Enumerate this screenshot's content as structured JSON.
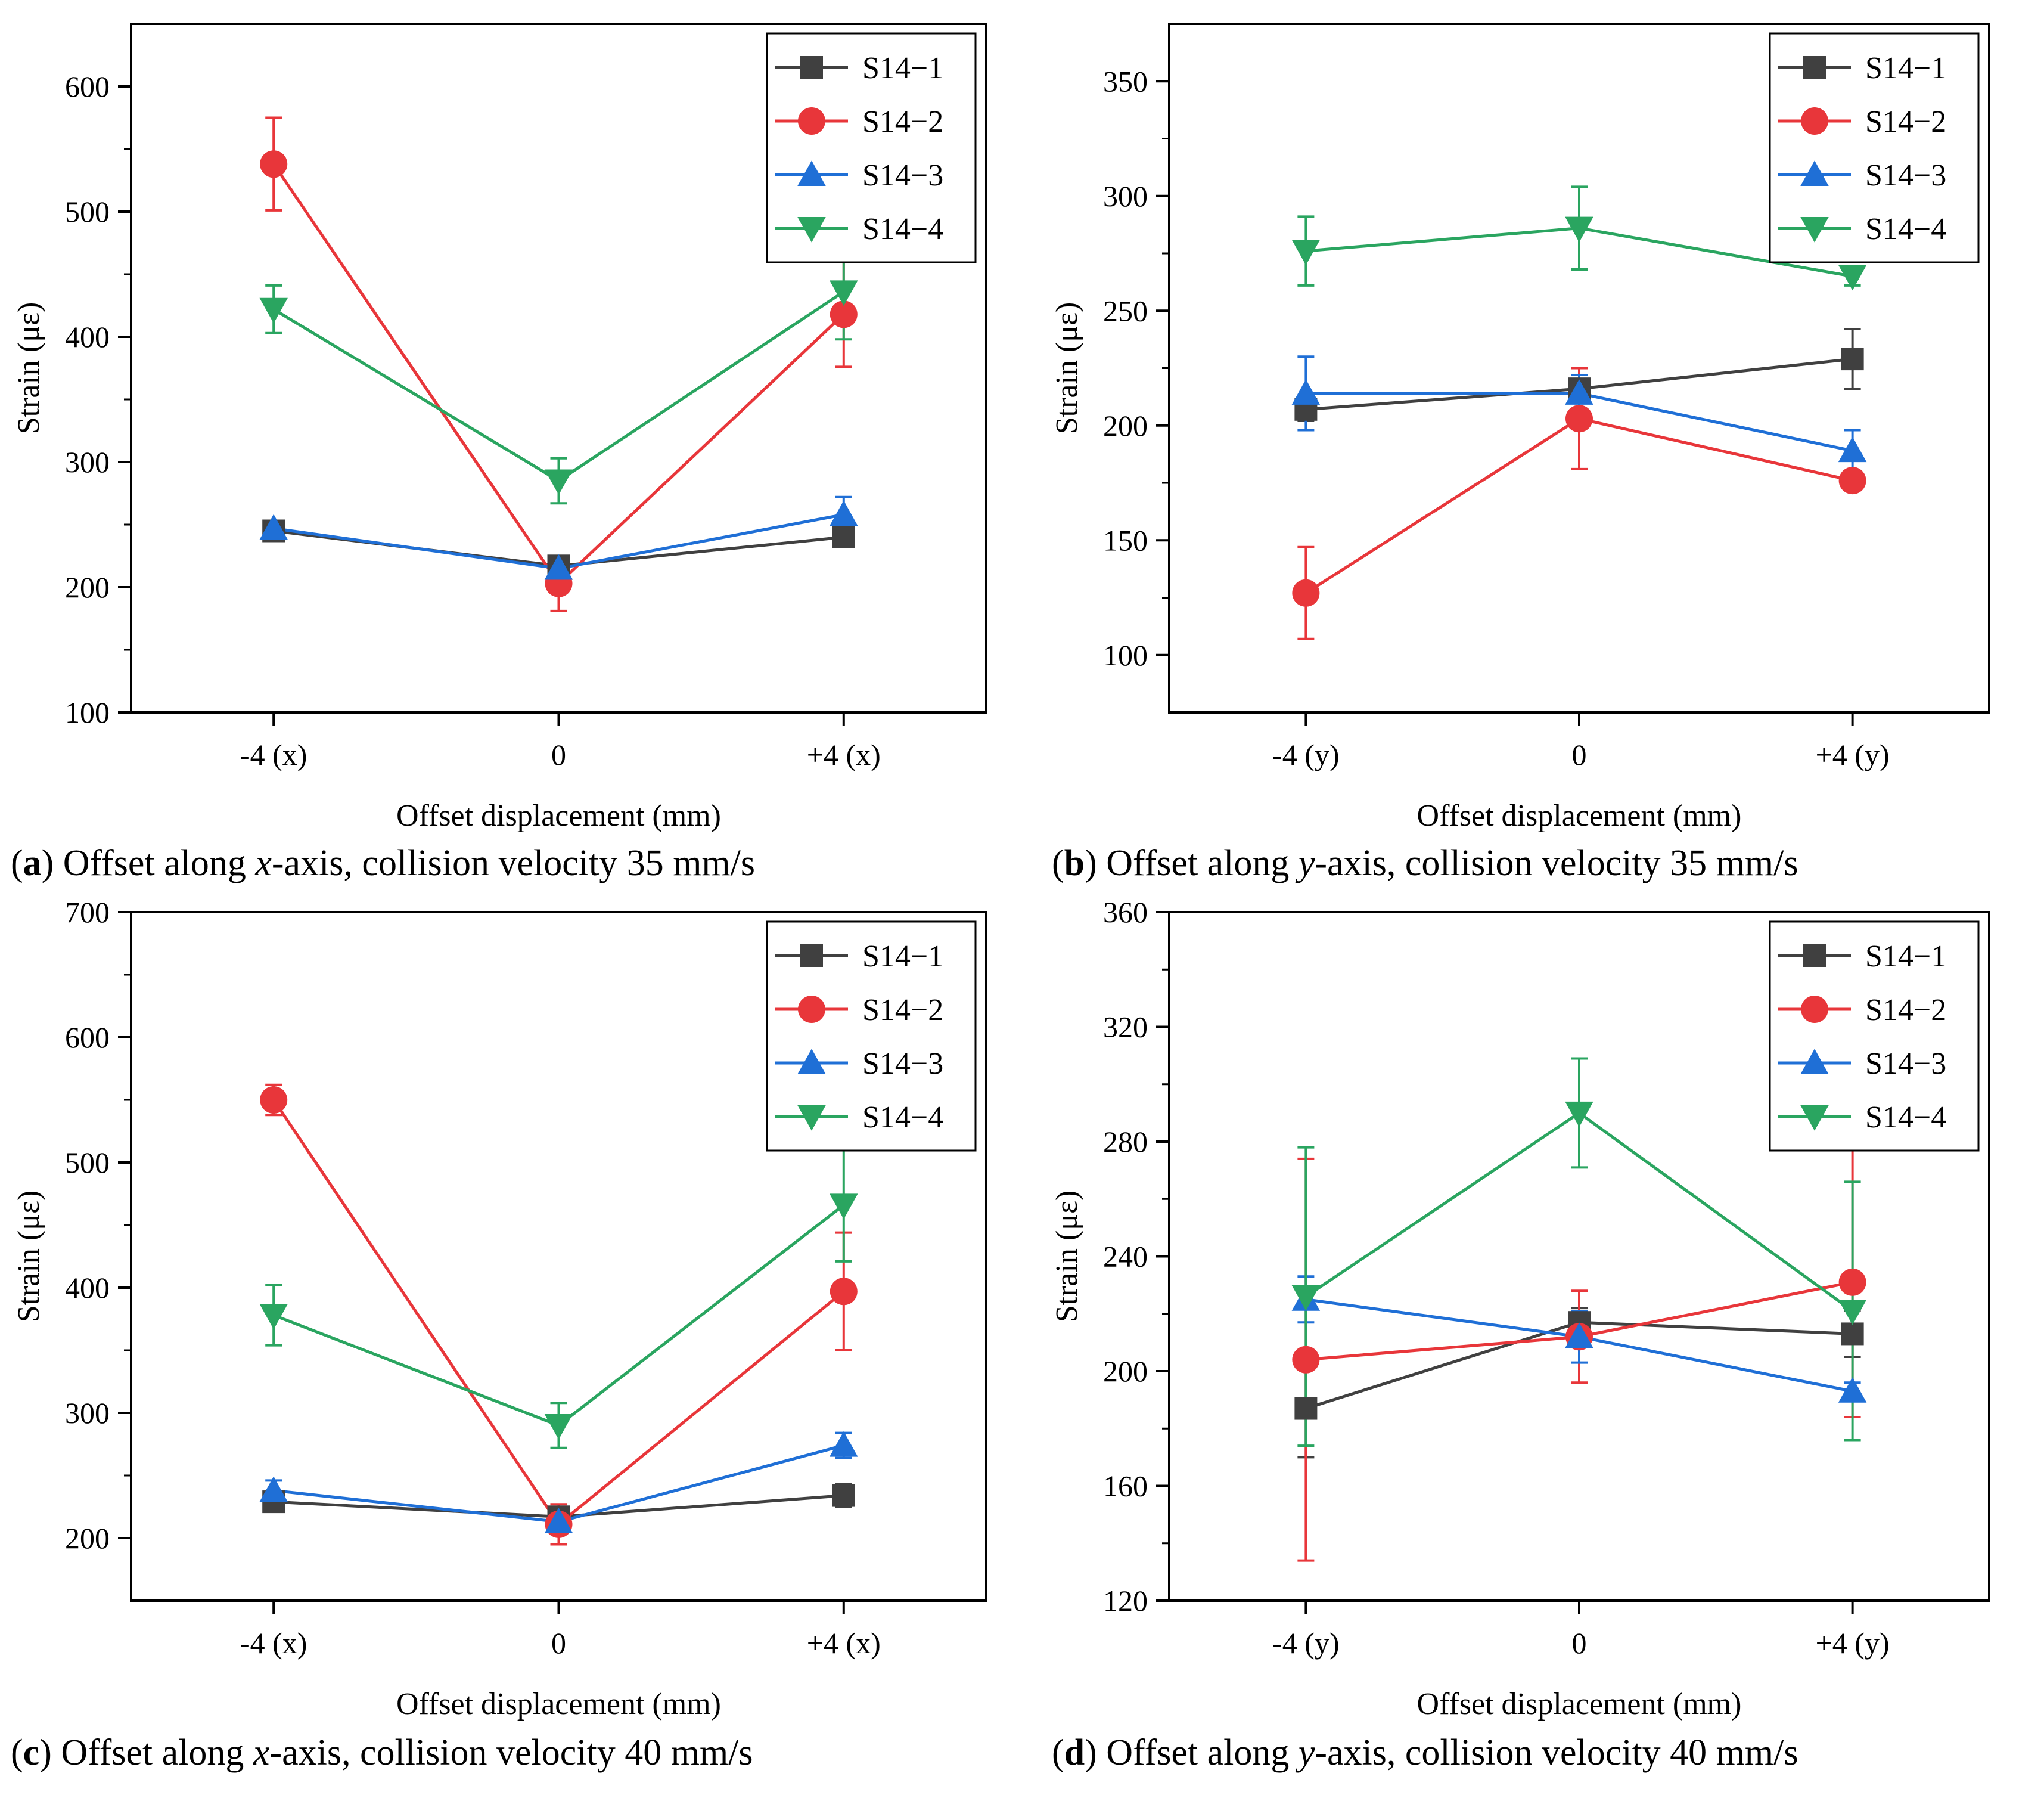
{
  "chart_data": [
    {
      "type": "line",
      "caption_letter": "a",
      "caption_pre": "Offset along ",
      "caption_axis": "x",
      "caption_post": "-axis, collision velocity 35 mm/s",
      "xlabel": "Offset displacement (mm)",
      "ylabel": "Strain (με)",
      "categories": [
        "-4 (x)",
        "0",
        "+4 (x)"
      ],
      "ylim": [
        100,
        650
      ],
      "yticks": [
        100,
        200,
        300,
        400,
        500,
        600
      ],
      "legend_position": "top-right",
      "series": [
        {
          "name": "S14−1",
          "color": "#404040",
          "marker": "square",
          "values": [
            245,
            217,
            240
          ],
          "errors": [
            8,
            8,
            6
          ]
        },
        {
          "name": "S14−2",
          "color": "#e8363a",
          "marker": "circle",
          "values": [
            538,
            203,
            418
          ],
          "errors": [
            37,
            22,
            42
          ]
        },
        {
          "name": "S14−3",
          "color": "#1f6fd6",
          "marker": "triangle-up",
          "values": [
            247,
            215,
            258
          ],
          "errors": [
            6,
            6,
            14
          ]
        },
        {
          "name": "S14−4",
          "color": "#2aa560",
          "marker": "triangle-down",
          "values": [
            422,
            285,
            436
          ],
          "errors": [
            19,
            18,
            38
          ]
        }
      ]
    },
    {
      "type": "line",
      "caption_letter": "b",
      "caption_pre": "Offset along ",
      "caption_axis": "y",
      "caption_post": "-axis, collision velocity 35 mm/s",
      "xlabel": "Offset displacement (mm)",
      "ylabel": "Strain (με)",
      "categories": [
        "-4 (y)",
        "0",
        "+4 (y)"
      ],
      "ylim": [
        75,
        375
      ],
      "yticks": [
        100,
        150,
        200,
        250,
        300,
        350
      ],
      "legend_position": "top-right",
      "series": [
        {
          "name": "S14−1",
          "color": "#404040",
          "marker": "square",
          "values": [
            207,
            216,
            229
          ],
          "errors": [
            5,
            6,
            13
          ]
        },
        {
          "name": "S14−2",
          "color": "#e8363a",
          "marker": "circle",
          "values": [
            127,
            203,
            176
          ],
          "errors": [
            20,
            22,
            4
          ]
        },
        {
          "name": "S14−3",
          "color": "#1f6fd6",
          "marker": "triangle-up",
          "values": [
            214,
            214,
            189
          ],
          "errors": [
            16,
            8,
            9
          ]
        },
        {
          "name": "S14−4",
          "color": "#2aa560",
          "marker": "triangle-down",
          "values": [
            276,
            286,
            265
          ],
          "errors": [
            15,
            18,
            4
          ]
        }
      ]
    },
    {
      "type": "line",
      "caption_letter": "c",
      "caption_pre": "Offset along ",
      "caption_axis": "x",
      "caption_post": "-axis, collision velocity 40 mm/s",
      "xlabel": "Offset displacement (mm)",
      "ylabel": "Strain (με)",
      "categories": [
        "-4 (x)",
        "0",
        "+4 (x)"
      ],
      "ylim": [
        150,
        700
      ],
      "yticks": [
        200,
        300,
        400,
        500,
        600,
        700
      ],
      "legend_position": "top-right",
      "series": [
        {
          "name": "S14−1",
          "color": "#404040",
          "marker": "square",
          "values": [
            229,
            217,
            234
          ],
          "errors": [
            8,
            8,
            9
          ]
        },
        {
          "name": "S14−2",
          "color": "#e8363a",
          "marker": "circle",
          "values": [
            550,
            211,
            397
          ],
          "errors": [
            12,
            16,
            47
          ]
        },
        {
          "name": "S14−3",
          "color": "#1f6fd6",
          "marker": "triangle-up",
          "values": [
            238,
            213,
            274
          ],
          "errors": [
            8,
            6,
            10
          ]
        },
        {
          "name": "S14−4",
          "color": "#2aa560",
          "marker": "triangle-down",
          "values": [
            378,
            290,
            466
          ],
          "errors": [
            24,
            18,
            45
          ]
        }
      ]
    },
    {
      "type": "line",
      "caption_letter": "d",
      "caption_pre": "Offset along ",
      "caption_axis": "y",
      "caption_post": "-axis, collision velocity 40 mm/s",
      "xlabel": "Offset displacement (mm)",
      "ylabel": "Strain (με)",
      "categories": [
        "-4 (y)",
        "0",
        "+4 (y)"
      ],
      "ylim": [
        120,
        360
      ],
      "yticks": [
        120,
        160,
        200,
        240,
        280,
        320,
        360
      ],
      "legend_position": "top-right",
      "series": [
        {
          "name": "S14−1",
          "color": "#404040",
          "marker": "square",
          "values": [
            187,
            217,
            213
          ],
          "errors": [
            17,
            5,
            8
          ]
        },
        {
          "name": "S14−2",
          "color": "#e8363a",
          "marker": "circle",
          "values": [
            204,
            212,
            231
          ],
          "errors": [
            70,
            16,
            47
          ]
        },
        {
          "name": "S14−3",
          "color": "#1f6fd6",
          "marker": "triangle-up",
          "values": [
            225,
            212,
            193
          ],
          "errors": [
            8,
            9,
            3
          ]
        },
        {
          "name": "S14−4",
          "color": "#2aa560",
          "marker": "triangle-down",
          "values": [
            226,
            290,
            221
          ],
          "errors": [
            52,
            19,
            45
          ]
        }
      ]
    }
  ]
}
